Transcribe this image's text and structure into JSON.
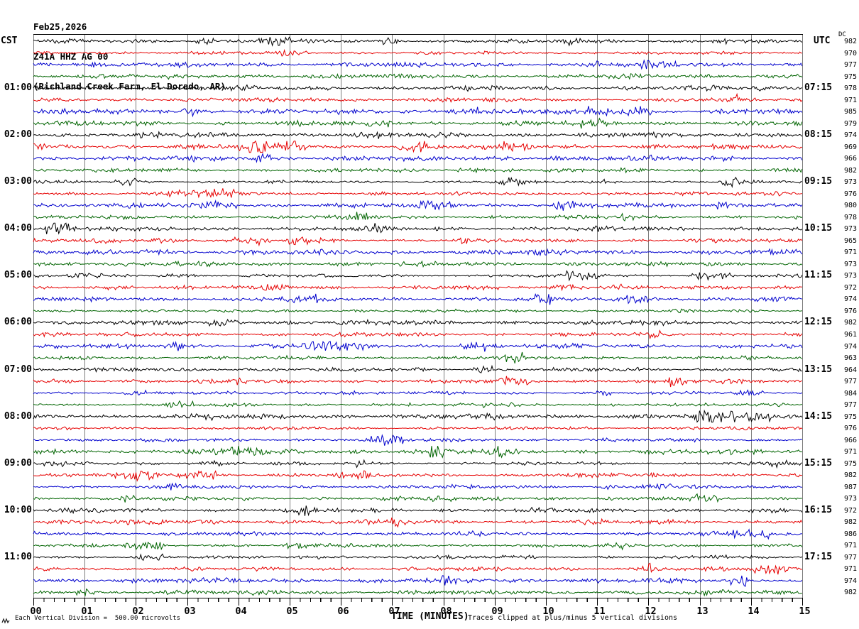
{
  "title": {
    "date": "Feb25,2026",
    "station": "Z41A HHZ AG 00",
    "location": "(Richland Creek Farm, El Dorado, AR)"
  },
  "axes": {
    "left_header": "CST",
    "right_header": "UTC",
    "dc_header": "DC",
    "x_axis_label": "TIME (MINUTES)",
    "x_tick_labels": [
      "00",
      "01",
      "02",
      "03",
      "04",
      "05",
      "06",
      "07",
      "08",
      "09",
      "10",
      "11",
      "12",
      "13",
      "14",
      "15"
    ]
  },
  "footer": {
    "scale_note": "Each Vertical Division =  500.00 microvolts",
    "clip_note": "Traces clipped at plus/minus 5 vertical divisions"
  },
  "colors": {
    "black": "#000000",
    "red": "#e60000",
    "blue": "#0000cd",
    "green": "#006400",
    "grid": "#7d7d7d",
    "border": "#000000",
    "background": "#ffffff"
  },
  "chart_data": {
    "type": "line",
    "description": "Seismic helicorder plot: 12 hours of continuous vertical-channel data, 15 minutes per line, 4 lines per hour cycling black/red/blue/green; traces show low-amplitude background noise with no large events.",
    "x_range_minutes": [
      0,
      15
    ],
    "minor_ticks_per_minute": 5,
    "trace_color_cycle": [
      "black",
      "red",
      "blue",
      "green"
    ],
    "vertical_division_microvolts": 500.0,
    "clip_divisions": 5,
    "rows": [
      {
        "cst": "",
        "utc": "",
        "dc": 982,
        "color": "black"
      },
      {
        "cst": "",
        "utc": "",
        "dc": 970,
        "color": "red"
      },
      {
        "cst": "",
        "utc": "",
        "dc": 977,
        "color": "blue"
      },
      {
        "cst": "",
        "utc": "",
        "dc": 975,
        "color": "green"
      },
      {
        "cst": "01:00",
        "utc": "07:15",
        "dc": 978,
        "color": "black"
      },
      {
        "cst": "",
        "utc": "",
        "dc": 971,
        "color": "red"
      },
      {
        "cst": "",
        "utc": "",
        "dc": 985,
        "color": "blue"
      },
      {
        "cst": "",
        "utc": "",
        "dc": 979,
        "color": "green"
      },
      {
        "cst": "02:00",
        "utc": "08:15",
        "dc": 974,
        "color": "black"
      },
      {
        "cst": "",
        "utc": "",
        "dc": 969,
        "color": "red"
      },
      {
        "cst": "",
        "utc": "",
        "dc": 966,
        "color": "blue"
      },
      {
        "cst": "",
        "utc": "",
        "dc": 982,
        "color": "green"
      },
      {
        "cst": "03:00",
        "utc": "09:15",
        "dc": 973,
        "color": "black"
      },
      {
        "cst": "",
        "utc": "",
        "dc": 976,
        "color": "red"
      },
      {
        "cst": "",
        "utc": "",
        "dc": 980,
        "color": "blue"
      },
      {
        "cst": "",
        "utc": "",
        "dc": 978,
        "color": "green"
      },
      {
        "cst": "04:00",
        "utc": "10:15",
        "dc": 973,
        "color": "black"
      },
      {
        "cst": "",
        "utc": "",
        "dc": 965,
        "color": "red"
      },
      {
        "cst": "",
        "utc": "",
        "dc": 971,
        "color": "blue"
      },
      {
        "cst": "",
        "utc": "",
        "dc": 973,
        "color": "green"
      },
      {
        "cst": "05:00",
        "utc": "11:15",
        "dc": 973,
        "color": "black"
      },
      {
        "cst": "",
        "utc": "",
        "dc": 972,
        "color": "red"
      },
      {
        "cst": "",
        "utc": "",
        "dc": 974,
        "color": "blue"
      },
      {
        "cst": "",
        "utc": "",
        "dc": 976,
        "color": "green"
      },
      {
        "cst": "06:00",
        "utc": "12:15",
        "dc": 982,
        "color": "black"
      },
      {
        "cst": "",
        "utc": "",
        "dc": 961,
        "color": "red"
      },
      {
        "cst": "",
        "utc": "",
        "dc": 974,
        "color": "blue"
      },
      {
        "cst": "",
        "utc": "",
        "dc": 963,
        "color": "green"
      },
      {
        "cst": "07:00",
        "utc": "13:15",
        "dc": 964,
        "color": "black"
      },
      {
        "cst": "",
        "utc": "",
        "dc": 977,
        "color": "red"
      },
      {
        "cst": "",
        "utc": "",
        "dc": 984,
        "color": "blue"
      },
      {
        "cst": "",
        "utc": "",
        "dc": 977,
        "color": "green"
      },
      {
        "cst": "08:00",
        "utc": "14:15",
        "dc": 975,
        "color": "black"
      },
      {
        "cst": "",
        "utc": "",
        "dc": 976,
        "color": "red"
      },
      {
        "cst": "",
        "utc": "",
        "dc": 966,
        "color": "blue"
      },
      {
        "cst": "",
        "utc": "",
        "dc": 971,
        "color": "green"
      },
      {
        "cst": "09:00",
        "utc": "15:15",
        "dc": 975,
        "color": "black"
      },
      {
        "cst": "",
        "utc": "",
        "dc": 982,
        "color": "red"
      },
      {
        "cst": "",
        "utc": "",
        "dc": 987,
        "color": "blue"
      },
      {
        "cst": "",
        "utc": "",
        "dc": 973,
        "color": "green"
      },
      {
        "cst": "10:00",
        "utc": "16:15",
        "dc": 972,
        "color": "black"
      },
      {
        "cst": "",
        "utc": "",
        "dc": 982,
        "color": "red"
      },
      {
        "cst": "",
        "utc": "",
        "dc": 986,
        "color": "blue"
      },
      {
        "cst": "",
        "utc": "",
        "dc": 971,
        "color": "green"
      },
      {
        "cst": "11:00",
        "utc": "17:15",
        "dc": 977,
        "color": "black"
      },
      {
        "cst": "",
        "utc": "",
        "dc": 971,
        "color": "red"
      },
      {
        "cst": "",
        "utc": "",
        "dc": 974,
        "color": "blue"
      },
      {
        "cst": "",
        "utc": "",
        "dc": 982,
        "color": "green"
      }
    ]
  }
}
